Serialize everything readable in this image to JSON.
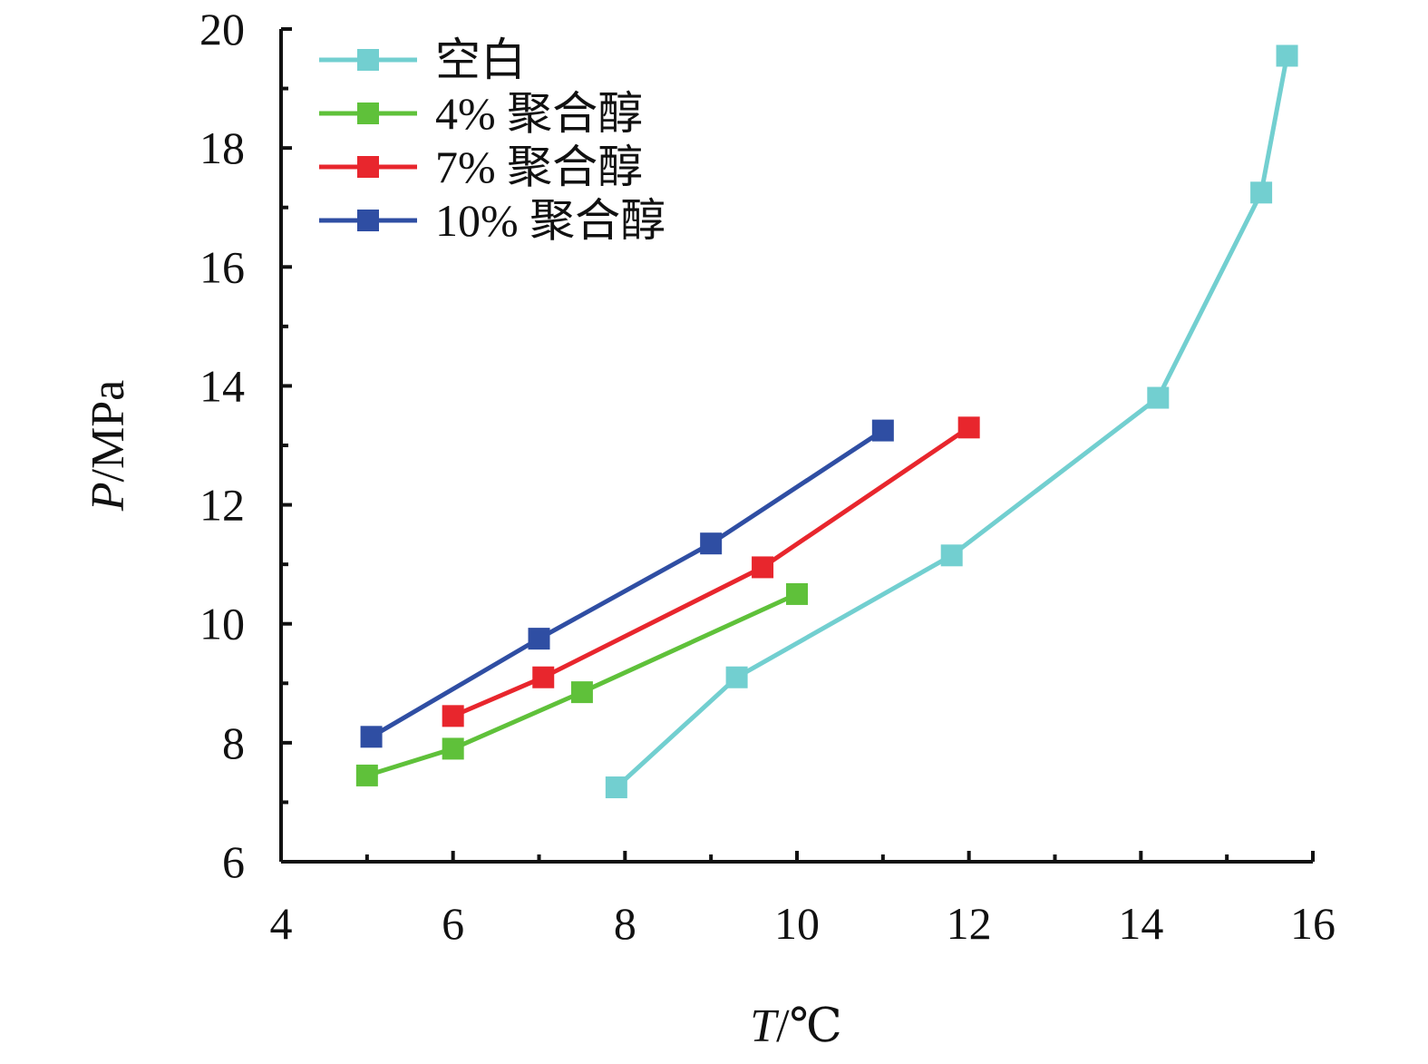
{
  "chart_data": {
    "type": "line",
    "title": "",
    "xlabel": {
      "italic": "T",
      "unit": "/℃"
    },
    "ylabel": {
      "italic": "P",
      "unit": "/MPa"
    },
    "xlim": [
      4,
      16
    ],
    "ylim": [
      6,
      20
    ],
    "x_ticks": [
      "4",
      "6",
      "8",
      "10",
      "12",
      "14",
      "16"
    ],
    "y_ticks": [
      "6",
      "8",
      "10",
      "12",
      "14",
      "16",
      "18",
      "20"
    ],
    "legend_position": "top-left",
    "grid": false,
    "series": [
      {
        "name": "空白",
        "color": "#72cfd0",
        "points": [
          {
            "x": 7.9,
            "y": 7.25
          },
          {
            "x": 9.3,
            "y": 9.1
          },
          {
            "x": 11.8,
            "y": 11.15
          },
          {
            "x": 14.2,
            "y": 13.8
          },
          {
            "x": 15.4,
            "y": 17.25
          },
          {
            "x": 15.7,
            "y": 19.55
          }
        ]
      },
      {
        "name": "4% 聚合醇",
        "color": "#5fc13a",
        "points": [
          {
            "x": 5.0,
            "y": 7.45
          },
          {
            "x": 6.0,
            "y": 7.9
          },
          {
            "x": 7.5,
            "y": 8.85
          },
          {
            "x": 10.0,
            "y": 10.5
          }
        ]
      },
      {
        "name": "7% 聚合醇",
        "color": "#e8262d",
        "points": [
          {
            "x": 6.0,
            "y": 8.45
          },
          {
            "x": 7.05,
            "y": 9.1
          },
          {
            "x": 9.6,
            "y": 10.95
          },
          {
            "x": 12.0,
            "y": 13.3
          }
        ]
      },
      {
        "name": "10% 聚合醇",
        "color": "#2f4ea3",
        "points": [
          {
            "x": 5.05,
            "y": 8.1
          },
          {
            "x": 7.0,
            "y": 9.75
          },
          {
            "x": 9.0,
            "y": 11.35
          },
          {
            "x": 11.0,
            "y": 13.25
          }
        ]
      }
    ]
  }
}
